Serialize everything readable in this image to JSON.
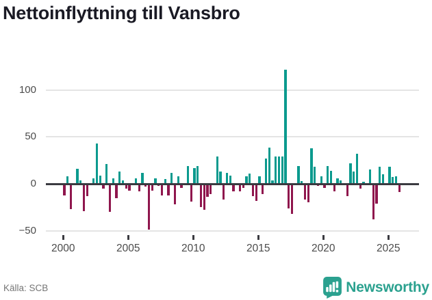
{
  "header": {
    "title": "Nettoinflyttning till Vansbro"
  },
  "footer": {
    "source_label": "Källa: SCB",
    "brand_name": "Newsworthy"
  },
  "colors": {
    "positive": "#0b9a8e",
    "negative": "#8f164d",
    "grid": "#e4e4e4",
    "axis": "#3a3a40",
    "tick_label": "#4b4b4b",
    "title": "#1a1a24",
    "source": "#757575",
    "brand": "#2ba18f"
  },
  "chart_data": {
    "type": "bar",
    "title": "Nettoinflyttning till Vansbro",
    "frequency": "quarterly",
    "x_start": "2000Q1",
    "x_end": "2025Q4",
    "x_tick_years": [
      2000,
      2005,
      2010,
      2015,
      2020,
      2025
    ],
    "y_ticks": [
      -50,
      0,
      50,
      100
    ],
    "y_tick_labels": [
      "−50",
      "0",
      "50",
      "100"
    ],
    "ylim": [
      -60,
      130
    ],
    "grid": true,
    "legend": false,
    "x_quarters": [
      "2000Q1",
      "2000Q2",
      "2000Q3",
      "2000Q4",
      "2001Q1",
      "2001Q2",
      "2001Q3",
      "2001Q4",
      "2002Q1",
      "2002Q2",
      "2002Q3",
      "2002Q4",
      "2003Q1",
      "2003Q2",
      "2003Q3",
      "2003Q4",
      "2004Q1",
      "2004Q2",
      "2004Q3",
      "2004Q4",
      "2005Q1",
      "2005Q2",
      "2005Q3",
      "2005Q4",
      "2006Q1",
      "2006Q2",
      "2006Q3",
      "2006Q4",
      "2007Q1",
      "2007Q2",
      "2007Q3",
      "2007Q4",
      "2008Q1",
      "2008Q2",
      "2008Q3",
      "2008Q4",
      "2009Q1",
      "2009Q2",
      "2009Q3",
      "2009Q4",
      "2010Q1",
      "2010Q2",
      "2010Q3",
      "2010Q4",
      "2011Q1",
      "2011Q2",
      "2011Q3",
      "2011Q4",
      "2012Q1",
      "2012Q2",
      "2012Q3",
      "2012Q4",
      "2013Q1",
      "2013Q2",
      "2013Q3",
      "2013Q4",
      "2014Q1",
      "2014Q2",
      "2014Q3",
      "2014Q4",
      "2015Q1",
      "2015Q2",
      "2015Q3",
      "2015Q4",
      "2016Q1",
      "2016Q2",
      "2016Q3",
      "2016Q4",
      "2017Q1",
      "2017Q2",
      "2017Q3",
      "2017Q4",
      "2018Q1",
      "2018Q2",
      "2018Q3",
      "2018Q4",
      "2019Q1",
      "2019Q2",
      "2019Q3",
      "2019Q4",
      "2020Q1",
      "2020Q2",
      "2020Q3",
      "2020Q4",
      "2021Q1",
      "2021Q2",
      "2021Q3",
      "2021Q4",
      "2022Q1",
      "2022Q2",
      "2022Q3",
      "2022Q4",
      "2023Q1",
      "2023Q2",
      "2023Q3",
      "2023Q4",
      "2024Q1",
      "2024Q2",
      "2024Q3",
      "2024Q4",
      "2025Q1",
      "2025Q2",
      "2025Q3",
      "2025Q4"
    ],
    "values": [
      -12,
      8,
      -27,
      0,
      16,
      4,
      -29,
      -13,
      0,
      6,
      43,
      9,
      -5,
      21,
      -30,
      6,
      -15,
      13,
      4,
      -5,
      -7,
      1,
      6,
      -8,
      12,
      -3,
      -49,
      -7,
      6,
      -2,
      -12,
      5,
      -12,
      12,
      -22,
      8,
      -4,
      0,
      19,
      -19,
      17,
      19,
      -25,
      -28,
      -14,
      -11,
      0,
      29,
      13,
      -17,
      12,
      9,
      -8,
      0,
      -8,
      -4,
      8,
      11,
      -13,
      -18,
      8,
      -11,
      27,
      39,
      4,
      29,
      29,
      29,
      122,
      -26,
      -32,
      0,
      19,
      3,
      -17,
      -20,
      38,
      18,
      -2,
      8,
      -4,
      19,
      14,
      -8,
      6,
      4,
      0,
      -13,
      22,
      13,
      32,
      -5,
      2,
      0,
      15,
      -38,
      -21,
      18,
      10,
      0,
      18,
      7,
      8,
      -9
    ]
  }
}
